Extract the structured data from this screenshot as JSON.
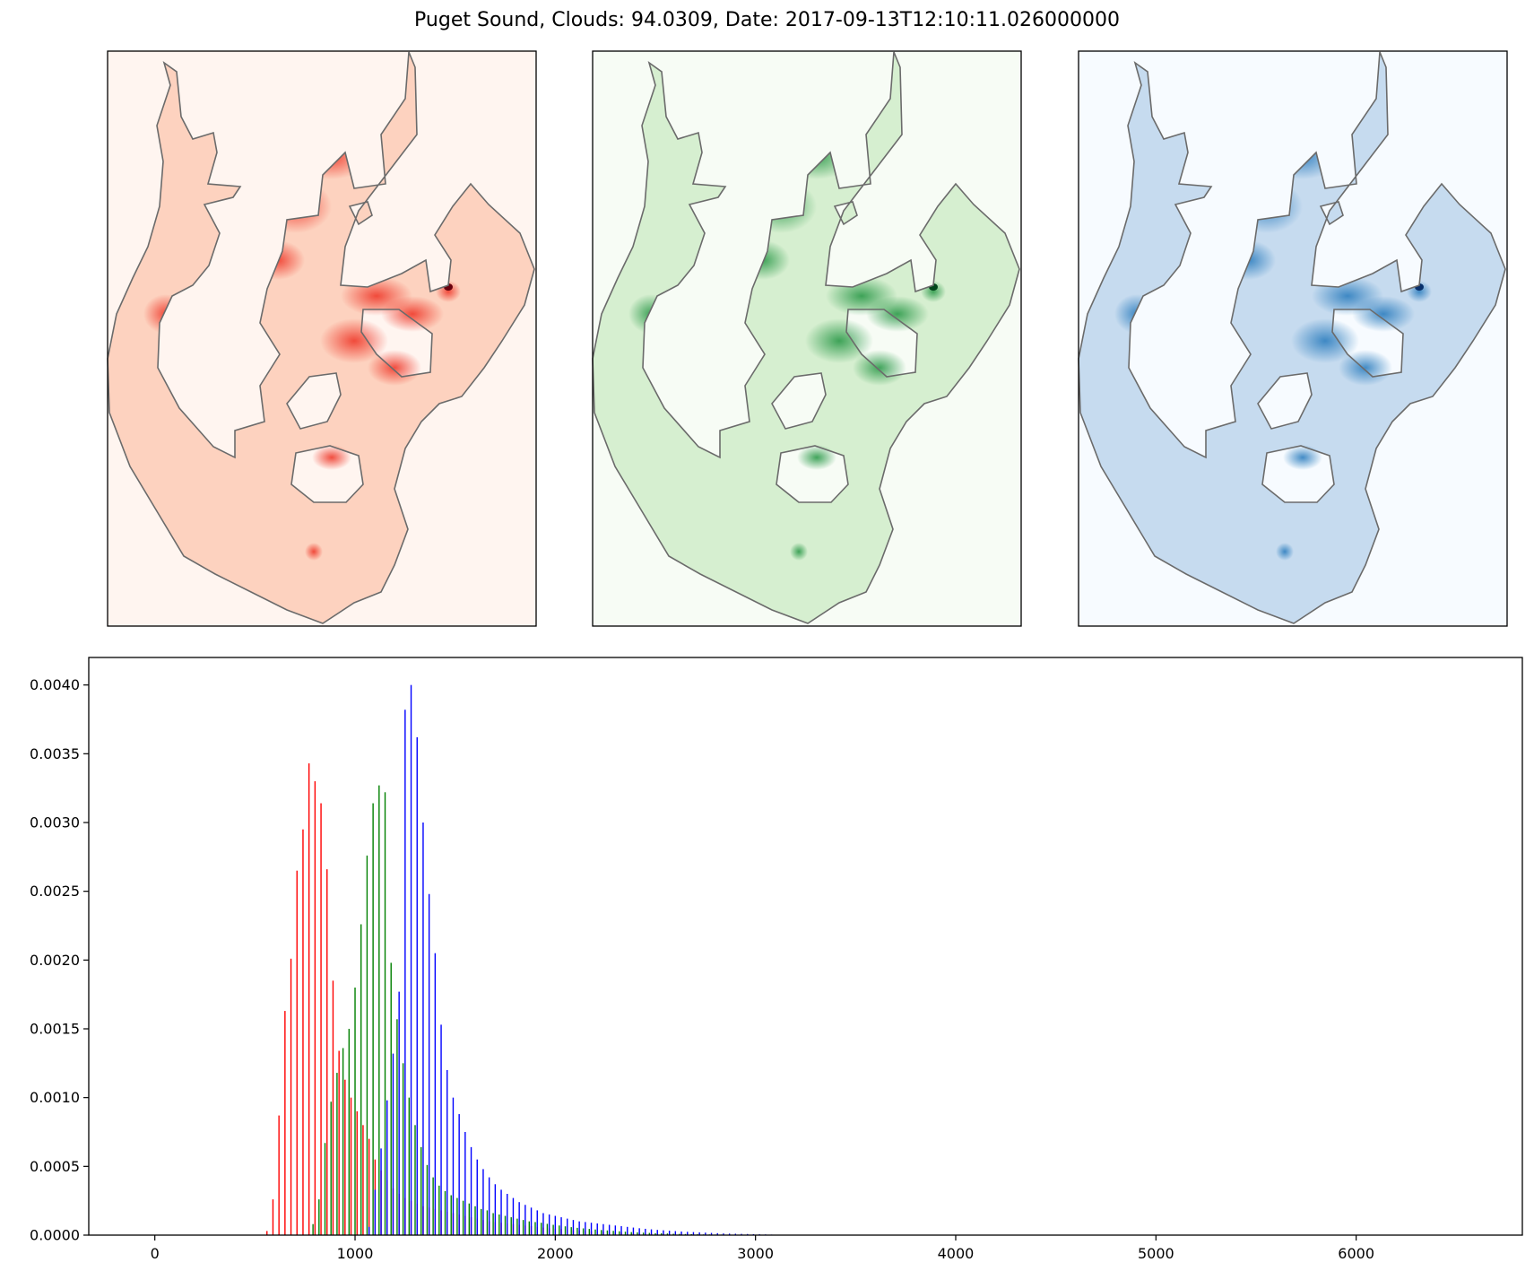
{
  "figure": {
    "title": "Puget Sound, Clouds: 94.0309, Date: 2017-09-13T12:10:11.026000000"
  },
  "map_panels": [
    {
      "name": "red",
      "background": "#fff5f0",
      "fill": "#fdd2bf",
      "hot": "#ef3b2c",
      "dark": "#67000d"
    },
    {
      "name": "green",
      "background": "#f7fcf5",
      "fill": "#d6efd0",
      "hot": "#2d9a4a",
      "dark": "#00441b"
    },
    {
      "name": "blue",
      "background": "#f7fbff",
      "fill": "#c6dbef",
      "hot": "#2f7fbf",
      "dark": "#08306b"
    }
  ],
  "chart_data": {
    "type": "bar",
    "title": "",
    "xlabel": "",
    "ylabel": "",
    "xlim": [
      -330,
      6830
    ],
    "ylim": [
      0,
      0.0042
    ],
    "xticks": [
      "0",
      "1000",
      "2000",
      "3000",
      "4000",
      "5000",
      "6000"
    ],
    "yticks": [
      "0.0000",
      "0.0005",
      "0.0010",
      "0.0015",
      "0.0020",
      "0.0025",
      "0.0030",
      "0.0035",
      "0.0040"
    ],
    "grid": false,
    "series": [
      {
        "color": "#ff0000",
        "x": [
          560,
          590,
          620,
          650,
          680,
          710,
          740,
          770,
          800,
          830,
          860,
          890,
          920,
          950,
          980,
          1010,
          1040,
          1070,
          1100,
          1130,
          1160,
          1190,
          1220,
          1250,
          1280,
          1310,
          1340,
          1370,
          1400,
          1430,
          1460,
          1490,
          1520,
          1550,
          1580,
          1610,
          1640,
          1670,
          1700,
          1730,
          1760,
          1790,
          1820,
          1850,
          1880,
          1910,
          1940,
          1970,
          2000,
          2030,
          2060,
          2090,
          2120,
          2150,
          2180,
          2210,
          2240,
          2270,
          2300,
          2330,
          2360,
          2390,
          2420,
          2450,
          2480,
          2510,
          2540,
          2570,
          2600,
          2630,
          2660,
          2690,
          2720,
          2750,
          2780,
          2810,
          2840,
          2870,
          2900,
          2930,
          2960,
          2990
        ],
        "values": [
          3e-05,
          0.00026,
          0.00087,
          0.00163,
          0.00201,
          0.00265,
          0.00295,
          0.00343,
          0.0033,
          0.00314,
          0.00266,
          0.00185,
          0.00134,
          0.00113,
          0.001,
          0.0009,
          0.0008,
          0.0007,
          0.00055,
          0.00047,
          0.0004,
          0.00034,
          0.0003,
          0.00027,
          0.00025,
          0.00023,
          0.00021,
          0.0002,
          0.00019,
          0.00018,
          0.00017,
          0.00016,
          0.00015,
          0.00014,
          0.00013,
          0.00012,
          0.00011,
          0.0001,
          9.5e-05,
          9e-05,
          8.5e-05,
          8e-05,
          7.5e-05,
          7e-05,
          6.5e-05,
          6e-05,
          5.5e-05,
          5e-05,
          4.7e-05,
          4.4e-05,
          4e-05,
          3.7e-05,
          3.4e-05,
          3.1e-05,
          2.8e-05,
          2.6e-05,
          2.4e-05,
          2.2e-05,
          2e-05,
          1.8e-05,
          1.6e-05,
          1.5e-05,
          1.4e-05,
          1.3e-05,
          1.2e-05,
          1.1e-05,
          1e-05,
          9e-06,
          8e-06,
          7e-06,
          6e-06,
          5e-06,
          5e-06,
          4e-06,
          4e-06,
          3e-06,
          3e-06,
          2e-06,
          2e-06,
          2e-06,
          1e-06,
          1e-06
        ]
      },
      {
        "color": "#008000",
        "x": [
          790,
          820,
          850,
          880,
          910,
          940,
          970,
          1000,
          1030,
          1060,
          1090,
          1120,
          1150,
          1180,
          1210,
          1240,
          1270,
          1300,
          1330,
          1360,
          1390,
          1420,
          1450,
          1480,
          1510,
          1540,
          1570,
          1600,
          1630,
          1660,
          1690,
          1720,
          1750,
          1780,
          1810,
          1840,
          1870,
          1900,
          1930,
          1960,
          1990,
          2020,
          2050,
          2080,
          2110,
          2140,
          2170,
          2200,
          2230,
          2260,
          2290,
          2320,
          2350,
          2380,
          2410,
          2440,
          2470,
          2500,
          2530,
          2560,
          2590,
          2620,
          2650,
          2680,
          2710,
          2740,
          2770,
          2800,
          2830,
          2860,
          2890,
          2920,
          2950,
          2980,
          3010,
          3040,
          3070,
          3100,
          3130,
          3160
        ],
        "values": [
          8e-05,
          0.00026,
          0.00067,
          0.00097,
          0.00118,
          0.00136,
          0.0015,
          0.0018,
          0.00226,
          0.00276,
          0.00314,
          0.00327,
          0.00322,
          0.00198,
          0.00157,
          0.00125,
          0.001,
          0.0008,
          0.00064,
          0.00051,
          0.00042,
          0.00036,
          0.00032,
          0.00029,
          0.00027,
          0.00025,
          0.00023,
          0.00021,
          0.00019,
          0.00018,
          0.00016,
          0.00015,
          0.00014,
          0.00013,
          0.00012,
          0.00011,
          0.0001,
          9.5e-05,
          9e-05,
          8.2e-05,
          7.5e-05,
          7e-05,
          6.4e-05,
          5.8e-05,
          5.3e-05,
          4.9e-05,
          4.5e-05,
          4.1e-05,
          3.7e-05,
          3.4e-05,
          3.1e-05,
          2.8e-05,
          2.5e-05,
          2.2e-05,
          2e-05,
          1.8e-05,
          1.6e-05,
          1.4e-05,
          1.3e-05,
          1.2e-05,
          1e-05,
          9e-06,
          8e-06,
          7e-06,
          6e-06,
          5e-06,
          5e-06,
          4e-06,
          4e-06,
          3e-06,
          3e-06,
          2e-06,
          2e-06,
          2e-06,
          1e-06,
          1e-06,
          1e-06,
          1e-06,
          1e-06,
          1e-06
        ]
      },
      {
        "color": "#0000ff",
        "x": [
          1070,
          1100,
          1130,
          1160,
          1190,
          1220,
          1250,
          1280,
          1310,
          1340,
          1370,
          1400,
          1430,
          1460,
          1490,
          1520,
          1550,
          1580,
          1610,
          1640,
          1670,
          1700,
          1730,
          1760,
          1790,
          1820,
          1850,
          1880,
          1910,
          1940,
          1970,
          2000,
          2030,
          2060,
          2090,
          2120,
          2150,
          2180,
          2210,
          2240,
          2270,
          2300,
          2330,
          2360,
          2390,
          2420,
          2450,
          2480,
          2510,
          2540,
          2570,
          2600,
          2630,
          2660,
          2690,
          2720,
          2750,
          2780,
          2810,
          2840,
          2870,
          2900,
          2930,
          2960,
          2990,
          3020,
          3050,
          3080,
          3110,
          3140,
          3170,
          3200,
          3230,
          3260
        ],
        "values": [
          6e-05,
          0.00033,
          0.00063,
          0.00098,
          0.00132,
          0.00177,
          0.00382,
          0.004,
          0.00362,
          0.003,
          0.00248,
          0.00205,
          0.00153,
          0.0012,
          0.001,
          0.00088,
          0.00075,
          0.00064,
          0.00055,
          0.00048,
          0.00042,
          0.00037,
          0.00033,
          0.0003,
          0.00027,
          0.00024,
          0.00022,
          0.0002,
          0.00018,
          0.00016,
          0.00015,
          0.00014,
          0.00013,
          0.00012,
          0.00011,
          0.0001,
          9.5e-05,
          9e-05,
          8.5e-05,
          8e-05,
          7.5e-05,
          7e-05,
          6.5e-05,
          6e-05,
          5.5e-05,
          5e-05,
          4.6e-05,
          4.2e-05,
          3.8e-05,
          3.5e-05,
          3.2e-05,
          2.9e-05,
          2.6e-05,
          2.4e-05,
          2.2e-05,
          2e-05,
          1.8e-05,
          1.6e-05,
          1.4e-05,
          1.2e-05,
          1.1e-05,
          1e-05,
          9e-06,
          8e-06,
          7e-06,
          6e-06,
          5e-06,
          4e-06,
          3e-06,
          3e-06,
          2e-06,
          2e-06,
          1e-06,
          1e-06
        ]
      }
    ]
  }
}
